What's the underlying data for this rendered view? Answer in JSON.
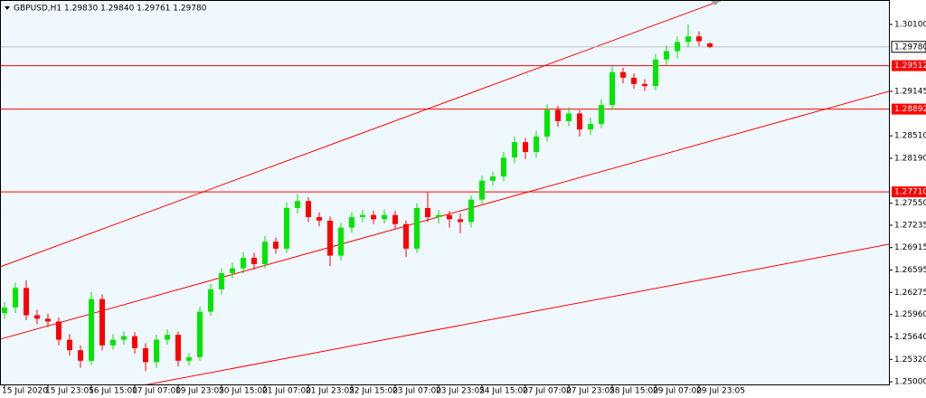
{
  "chart_data": {
    "type": "candlestick",
    "title": "GBPUSD,H1  1.29830 1.29840 1.29761 1.29780",
    "bull_color": "#00e600",
    "bear_color": "#ff0000",
    "ylim": [
      1.24962,
      1.30449
    ],
    "yticks": [
      {
        "value": 1.301,
        "label": "1.30100"
      },
      {
        "value": 1.29145,
        "label": "1.29145"
      },
      {
        "value": 1.2851,
        "label": "1.28510"
      },
      {
        "value": 1.2819,
        "label": "1.28190"
      },
      {
        "value": 1.2755,
        "label": "1.27550"
      },
      {
        "value": 1.27235,
        "label": "1.27235"
      },
      {
        "value": 1.26915,
        "label": "1.26915"
      },
      {
        "value": 1.26595,
        "label": "1.26595"
      },
      {
        "value": 1.26275,
        "label": "1.26275"
      },
      {
        "value": 1.2596,
        "label": "1.25960"
      },
      {
        "value": 1.2564,
        "label": "1.25640"
      },
      {
        "value": 1.2532,
        "label": "1.25320"
      },
      {
        "value": 1.25,
        "label": "1.25000"
      }
    ],
    "x_labels": [
      "15 Jul 2020",
      "15 Jul 23:05",
      "16 Jul 15:00",
      "17 Jul 07:00",
      "19 Jul 23:05",
      "20 Jul 15:00",
      "21 Jul 07:00",
      "21 Jul 23:05",
      "22 Jul 15:00",
      "23 Jul 07:00",
      "23 Jul 23:05",
      "24 Jul 15:00",
      "27 Jul 07:00",
      "27 Jul 23:05",
      "28 Jul 15:00",
      "29 Jul 07:00",
      "29 Jul 23:05"
    ],
    "current_price": {
      "value": 1.2978,
      "label": "1.29780",
      "color": "#c0c0c0"
    },
    "price_levels": [
      {
        "value": 1.29512,
        "label": "1.29512",
        "color": "#ff0000"
      },
      {
        "value": 1.28892,
        "label": "1.28892",
        "color": "#ff0000"
      },
      {
        "value": 1.2771,
        "label": "1.27710",
        "color": "#ff0000"
      }
    ],
    "trend_lines": [
      {
        "start": 1.2664,
        "end": 1.31327,
        "color": "#ff0000"
      },
      {
        "start": 1.25607,
        "end": 1.29145,
        "color": "#ff0000"
      },
      {
        "start": 1.24562,
        "end": 1.26963,
        "color": "#ff0000"
      }
    ],
    "open": [
      1.2598,
      1.2606,
      1.2634,
      1.2595,
      1.259,
      1.2586,
      1.256,
      1.2545,
      1.253,
      1.2618,
      1.2552,
      1.256,
      1.2565,
      1.2548,
      1.2528,
      1.256,
      1.2567,
      1.253,
      1.2535,
      1.26,
      1.2632,
      1.2655,
      1.2662,
      1.2677,
      1.2668,
      1.27,
      1.269,
      1.2748,
      1.2758,
      1.2735,
      1.273,
      1.268,
      1.272,
      1.2735,
      1.2738,
      1.2732,
      1.2738,
      1.2725,
      1.269,
      1.2748,
      1.2735,
      1.2738,
      1.2732,
      1.2728,
      1.276,
      1.2787,
      1.2793,
      1.282,
      1.2842,
      1.2828,
      1.285,
      1.2888,
      1.2872,
      1.2883,
      1.286,
      1.2868,
      1.2895,
      1.2942,
      1.2934,
      1.2925,
      1.2922,
      1.296,
      1.2972,
      1.2985,
      1.2993,
      1.2983
    ],
    "high": [
      1.2614,
      1.2642,
      1.2645,
      1.2603,
      1.2597,
      1.2592,
      1.2568,
      1.2552,
      1.2628,
      1.2625,
      1.2568,
      1.2572,
      1.2571,
      1.2555,
      1.2567,
      1.2575,
      1.2572,
      1.2541,
      1.2607,
      1.264,
      1.2662,
      1.267,
      1.2685,
      1.2684,
      1.2708,
      1.2706,
      1.2756,
      1.2768,
      1.2763,
      1.2742,
      1.2736,
      1.2727,
      1.2742,
      1.2745,
      1.2744,
      1.2746,
      1.2744,
      1.273,
      1.2755,
      1.277,
      1.2745,
      1.2744,
      1.274,
      1.2766,
      1.2794,
      1.28,
      1.2828,
      1.285,
      1.2848,
      1.2858,
      1.2896,
      1.2894,
      1.2892,
      1.2888,
      1.2877,
      1.2903,
      1.295,
      1.2948,
      1.294,
      1.2932,
      1.2968,
      1.298,
      1.2993,
      1.301,
      1.3,
      1.2984
    ],
    "low": [
      1.259,
      1.2598,
      1.2588,
      1.2582,
      1.2578,
      1.2552,
      1.2537,
      1.252,
      1.2524,
      1.2545,
      1.2546,
      1.2553,
      1.254,
      1.2515,
      1.252,
      1.2553,
      1.2522,
      1.2523,
      1.253,
      1.2594,
      1.2625,
      1.2648,
      1.2655,
      1.266,
      1.2662,
      1.2683,
      1.2684,
      1.274,
      1.2728,
      1.2722,
      1.2665,
      1.2673,
      1.2713,
      1.2728,
      1.2725,
      1.2726,
      1.2718,
      1.2678,
      1.2684,
      1.2728,
      1.2726,
      1.272,
      1.2712,
      1.272,
      1.2754,
      1.278,
      1.2786,
      1.2812,
      1.2818,
      1.282,
      1.2843,
      1.2864,
      1.2865,
      1.285,
      1.2852,
      1.2862,
      1.2888,
      1.2926,
      1.2918,
      1.2915,
      1.2916,
      1.2952,
      1.2962,
      1.2978,
      1.2979,
      1.29761
    ],
    "close": [
      1.2606,
      1.2634,
      1.2595,
      1.259,
      1.2586,
      1.256,
      1.2545,
      1.253,
      1.2618,
      1.2552,
      1.256,
      1.2565,
      1.2548,
      1.2528,
      1.256,
      1.2567,
      1.253,
      1.2535,
      1.26,
      1.2632,
      1.2655,
      1.2662,
      1.2677,
      1.2668,
      1.27,
      1.269,
      1.2748,
      1.2758,
      1.2735,
      1.273,
      1.268,
      1.272,
      1.2735,
      1.2738,
      1.2732,
      1.2738,
      1.2725,
      1.269,
      1.2748,
      1.2735,
      1.2738,
      1.2732,
      1.2728,
      1.276,
      1.2787,
      1.2793,
      1.282,
      1.2842,
      1.2828,
      1.285,
      1.2888,
      1.2872,
      1.2883,
      1.286,
      1.2868,
      1.2895,
      1.2942,
      1.2934,
      1.2925,
      1.2922,
      1.296,
      1.2972,
      1.2985,
      1.2993,
      1.2986,
      1.2978
    ]
  }
}
